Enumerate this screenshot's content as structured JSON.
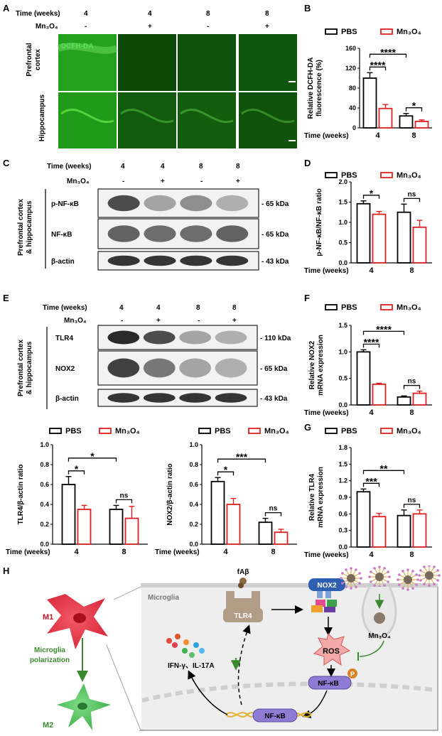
{
  "panels": {
    "A": "A",
    "B": "B",
    "C": "C",
    "D": "D",
    "E": "E",
    "F": "F",
    "G": "G",
    "H": "H"
  },
  "common": {
    "time_label": "Time (weeks)",
    "mn_label": "Mn₃O₄",
    "pbs": "PBS",
    "mn": "Mn₃O₄",
    "plus": "+",
    "minus": "-"
  },
  "panelA": {
    "times": [
      "4",
      "4",
      "8",
      "8"
    ],
    "mn_states": [
      "-",
      "+",
      "-",
      "+"
    ],
    "stain": "DCFH-DA",
    "regions": [
      "Prefrontal cortex",
      "Hippocampus"
    ],
    "green_intensity": [
      [
        1.0,
        0.28,
        0.35,
        0.38
      ],
      [
        0.95,
        0.42,
        0.45,
        0.36
      ]
    ]
  },
  "panelC": {
    "times": [
      "4",
      "4",
      "8",
      "8"
    ],
    "mn_states": [
      "-",
      "+",
      "-",
      "+"
    ],
    "tissue": "Prefrontal cortex & hippocampus",
    "rows": [
      {
        "name": "p-NF-κB",
        "kda": "- 65 kDa"
      },
      {
        "name": "NF-κB",
        "kda": "- 65 kDa"
      },
      {
        "name": "β-actin",
        "kda": "- 43 kDa"
      }
    ]
  },
  "panelE": {
    "times": [
      "4",
      "4",
      "8",
      "8"
    ],
    "mn_states": [
      "-",
      "+",
      "-",
      "+"
    ],
    "tissue": "Prefrontal cortex & hippocampus",
    "rows": [
      {
        "name": "TLR4",
        "kda": "- 110 kDa"
      },
      {
        "name": "NOX2",
        "kda": "- 65 kDa"
      },
      {
        "name": "β-actin",
        "kda": "- 43 kDa"
      }
    ]
  },
  "chart_data": [
    {
      "id": "B",
      "type": "bar",
      "ylabel": [
        "Relative DCFH-DA",
        "fluorescence (%)"
      ],
      "categories": [
        "4",
        "8"
      ],
      "xlabel": "Time (weeks)",
      "ylim": [
        0,
        160
      ],
      "yticks": [
        0,
        40,
        80,
        120,
        160
      ],
      "series": [
        {
          "name": "PBS",
          "values": [
            100,
            24
          ],
          "errors": [
            11,
            5
          ]
        },
        {
          "name": "Mn₃O₄",
          "values": [
            39,
            13
          ],
          "errors": [
            8,
            3
          ]
        }
      ],
      "annotations": [
        {
          "type": "within",
          "group": 0,
          "text": "****"
        },
        {
          "type": "within",
          "group": 1,
          "text": "*"
        },
        {
          "type": "across",
          "text": "****"
        }
      ]
    },
    {
      "id": "D",
      "type": "bar",
      "ylabel": [
        "p-NF-κB/NF-κB ratio"
      ],
      "categories": [
        "4",
        "8"
      ],
      "xlabel": "Time (weeks)",
      "ylim": [
        0,
        2.0
      ],
      "yticks": [
        0.0,
        0.5,
        1.0,
        1.5,
        2.0
      ],
      "series": [
        {
          "name": "PBS",
          "values": [
            1.46,
            1.25
          ],
          "errors": [
            0.07,
            0.2
          ]
        },
        {
          "name": "Mn₃O₄",
          "values": [
            1.2,
            0.88
          ],
          "errors": [
            0.07,
            0.17
          ]
        }
      ],
      "annotations": [
        {
          "type": "within",
          "group": 0,
          "text": "*"
        },
        {
          "type": "within",
          "group": 1,
          "text": "ns"
        }
      ]
    },
    {
      "id": "E1",
      "type": "bar",
      "ylabel": [
        "TLR4/β-actin ratio"
      ],
      "categories": [
        "4",
        "8"
      ],
      "xlabel": "Time (weeks)",
      "ylim": [
        0,
        1.0
      ],
      "yticks": [
        0.0,
        0.2,
        0.4,
        0.6,
        0.8,
        1.0
      ],
      "series": [
        {
          "name": "PBS",
          "values": [
            0.6,
            0.35
          ],
          "errors": [
            0.08,
            0.04
          ]
        },
        {
          "name": "Mn₃O₄",
          "values": [
            0.35,
            0.26
          ],
          "errors": [
            0.04,
            0.12
          ]
        }
      ],
      "annotations": [
        {
          "type": "within",
          "group": 0,
          "text": "*"
        },
        {
          "type": "within",
          "group": 1,
          "text": "ns"
        },
        {
          "type": "across",
          "text": "*"
        }
      ]
    },
    {
      "id": "E2",
      "type": "bar",
      "ylabel": [
        "NOX2/β-actin ratio"
      ],
      "categories": [
        "4",
        "8"
      ],
      "xlabel": "Time (weeks)",
      "ylim": [
        0,
        1.0
      ],
      "yticks": [
        0.0,
        0.2,
        0.4,
        0.6,
        0.8,
        1.0
      ],
      "series": [
        {
          "name": "PBS",
          "values": [
            0.63,
            0.22
          ],
          "errors": [
            0.04,
            0.04
          ]
        },
        {
          "name": "Mn₃O₄",
          "values": [
            0.4,
            0.12
          ],
          "errors": [
            0.06,
            0.03
          ]
        }
      ],
      "annotations": [
        {
          "type": "within",
          "group": 0,
          "text": "*"
        },
        {
          "type": "within",
          "group": 1,
          "text": "ns"
        },
        {
          "type": "across",
          "text": "***"
        }
      ]
    },
    {
      "id": "F",
      "type": "bar",
      "ylabel": [
        "Relative NOX2",
        "mRNA expression"
      ],
      "categories": [
        "4",
        "8"
      ],
      "xlabel": "Time (weeks)",
      "ylim": [
        0,
        1.5
      ],
      "yticks": [
        0.0,
        0.5,
        1.0,
        1.5
      ],
      "series": [
        {
          "name": "PBS",
          "values": [
            1.0,
            0.15
          ],
          "errors": [
            0.04,
            0.02
          ]
        },
        {
          "name": "Mn₃O₄",
          "values": [
            0.39,
            0.22
          ],
          "errors": [
            0.02,
            0.04
          ]
        }
      ],
      "annotations": [
        {
          "type": "within",
          "group": 0,
          "text": "****"
        },
        {
          "type": "within",
          "group": 1,
          "text": "ns"
        },
        {
          "type": "across",
          "text": "****"
        }
      ]
    },
    {
      "id": "G",
      "type": "bar",
      "ylabel": [
        "Relative TLR4",
        "mRNA expression"
      ],
      "categories": [
        "4",
        "8"
      ],
      "xlabel": "Time (weeks)",
      "ylim": [
        0,
        1.8
      ],
      "yticks": [
        0.0,
        0.3,
        0.6,
        0.9,
        1.2,
        1.5,
        1.8
      ],
      "series": [
        {
          "name": "PBS",
          "values": [
            1.0,
            0.57
          ],
          "errors": [
            0.05,
            0.1
          ]
        },
        {
          "name": "Mn₃O₄",
          "values": [
            0.55,
            0.6
          ],
          "errors": [
            0.06,
            0.07
          ]
        }
      ],
      "annotations": [
        {
          "type": "within",
          "group": 0,
          "text": "***"
        },
        {
          "type": "within",
          "group": 1,
          "text": "ns"
        },
        {
          "type": "across",
          "text": "**"
        }
      ]
    }
  ],
  "panelH": {
    "m1": "M1",
    "m2": "M2",
    "polarization": [
      "Microglia",
      "polarization"
    ],
    "microglia": "Microglia",
    "fab": "fAβ",
    "tlr4": "TLR4",
    "nox2": "NOX2",
    "ros": "ROS",
    "nfkb": "NF-κB",
    "p": "P",
    "mn3o4": "Mn₃O₄",
    "cytokines": "IFN-γ、IL-17A"
  }
}
